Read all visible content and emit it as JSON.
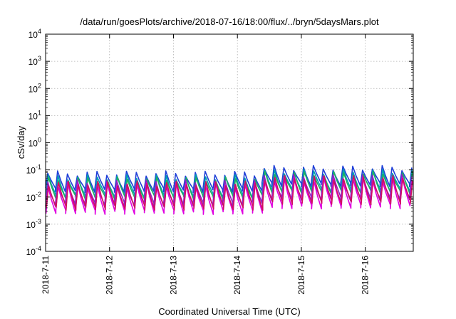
{
  "chart_data": {
    "type": "line",
    "title": "/data/run/goesPlots/archive/2018-07-16/18:00/flux/../bryn/5daysMars.plot",
    "xlabel": "Coordinated Universal Time (UTC)",
    "ylabel": "cSv/day",
    "yscale": "log",
    "ylim": [
      0.0001,
      10000
    ],
    "xlim": [
      "2018-07-11",
      "2018-07-16T18:00"
    ],
    "grid": true,
    "y_ticks": [
      {
        "base": "10",
        "exp": "-4"
      },
      {
        "base": "10",
        "exp": "-3"
      },
      {
        "base": "10",
        "exp": "-2"
      },
      {
        "base": "10",
        "exp": "-1"
      },
      {
        "base": "10",
        "exp": "0"
      },
      {
        "base": "10",
        "exp": "1"
      },
      {
        "base": "10",
        "exp": "2"
      },
      {
        "base": "10",
        "exp": "3"
      },
      {
        "base": "10",
        "exp": "4"
      }
    ],
    "x_ticks": [
      "2018-7-11",
      "2018-7-12",
      "2018-7-13",
      "2018-7-14",
      "2018-7-15",
      "2018-7-16"
    ],
    "pattern": {
      "cycles_per_day": 6.5,
      "description": "sawtooth: rapid rise to peak, slow decay to trough"
    },
    "series": [
      {
        "color": "#2040d8",
        "peak": 0.075,
        "trough": 0.018
      },
      {
        "color": "#00a0b0",
        "peak": 0.055,
        "trough": 0.011
      },
      {
        "color": "#20b060",
        "peak": 0.045,
        "trough": 0.009
      },
      {
        "color": "#9020c0",
        "peak": 0.035,
        "trough": 0.0055
      },
      {
        "color": "#e000e0",
        "peak": 0.028,
        "trough": 0.0028
      },
      {
        "color": "#d01060",
        "peak": 0.032,
        "trough": 0.004
      }
    ],
    "late_boost": {
      "from": "2018-07-14T07:00",
      "factor": 1.6
    }
  }
}
